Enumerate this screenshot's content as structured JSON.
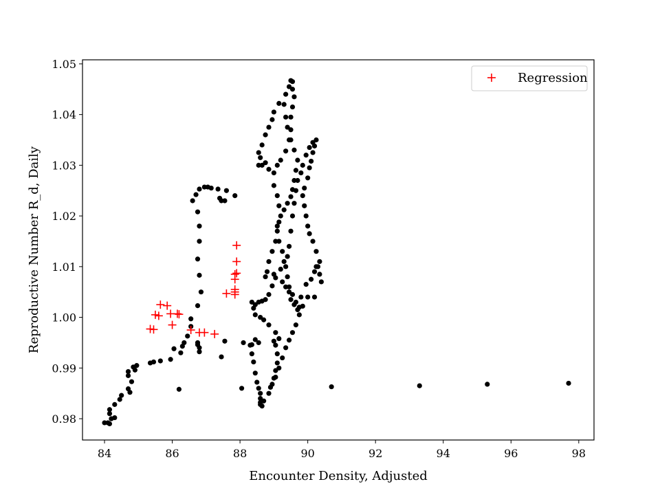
{
  "chart_data": {
    "type": "scatter",
    "title": "",
    "xlabel": "Encounter Density, Adjusted",
    "ylabel": "Reproductive Number R_d, Daily",
    "xlim": [
      83.35,
      98.45
    ],
    "ylim": [
      0.9758,
      1.0508
    ],
    "xticks": [
      84,
      86,
      88,
      90,
      92,
      94,
      96,
      98
    ],
    "xtick_labels": [
      "84",
      "86",
      "88",
      "90",
      "92",
      "94",
      "96",
      "98"
    ],
    "yticks": [
      0.98,
      0.99,
      1.0,
      1.01,
      1.02,
      1.03,
      1.04,
      1.05
    ],
    "ytick_labels": [
      "0.98",
      "0.99",
      "1.00",
      "1.01",
      "1.02",
      "1.03",
      "1.04",
      "1.05"
    ],
    "grid": false,
    "legend_position": "upper right",
    "series": [
      {
        "marker": "dot",
        "color": "#000000",
        "points": [
          [
            84.0,
            0.9792
          ],
          [
            84.1,
            0.9792
          ],
          [
            84.15,
            0.979
          ],
          [
            84.2,
            0.98
          ],
          [
            84.15,
            0.981
          ],
          [
            84.15,
            0.9818
          ],
          [
            84.3,
            0.9802
          ],
          [
            84.3,
            0.9828
          ],
          [
            84.45,
            0.9838
          ],
          [
            84.5,
            0.9846
          ],
          [
            84.7,
            0.9859
          ],
          [
            84.75,
            0.9852
          ],
          [
            84.7,
            0.9885
          ],
          [
            84.7,
            0.9893
          ],
          [
            84.8,
            0.9873
          ],
          [
            84.85,
            0.9902
          ],
          [
            84.95,
            0.9905
          ],
          [
            84.9,
            0.9896
          ],
          [
            85.35,
            0.991
          ],
          [
            85.45,
            0.9912
          ],
          [
            85.65,
            0.9914
          ],
          [
            85.95,
            0.9917
          ],
          [
            86.05,
            0.9938
          ],
          [
            86.25,
            0.993
          ],
          [
            86.3,
            0.9943
          ],
          [
            86.35,
            0.995
          ],
          [
            86.45,
            0.9963
          ],
          [
            86.55,
            0.9982
          ],
          [
            86.55,
            0.9997
          ],
          [
            86.75,
            0.9946
          ],
          [
            86.8,
            0.994
          ],
          [
            86.75,
            0.995
          ],
          [
            86.8,
            0.9932
          ],
          [
            86.75,
            1.0023
          ],
          [
            86.85,
            1.005
          ],
          [
            86.8,
            1.0083
          ],
          [
            86.75,
            1.0115
          ],
          [
            86.8,
            1.015
          ],
          [
            86.8,
            1.018
          ],
          [
            86.75,
            1.0208
          ],
          [
            86.6,
            1.023
          ],
          [
            86.7,
            1.0242
          ],
          [
            86.8,
            1.0253
          ],
          [
            86.95,
            1.0257
          ],
          [
            87.05,
            1.0257
          ],
          [
            87.15,
            1.0255
          ],
          [
            87.35,
            1.0253
          ],
          [
            87.4,
            1.0235
          ],
          [
            87.45,
            1.023
          ],
          [
            87.55,
            1.023
          ],
          [
            87.6,
            1.025
          ],
          [
            87.85,
            1.024
          ],
          [
            87.55,
            0.9953
          ],
          [
            87.45,
            0.9922
          ],
          [
            86.2,
            0.9858
          ],
          [
            88.05,
            0.986
          ],
          [
            88.1,
            0.995
          ],
          [
            88.3,
            0.9945
          ],
          [
            88.35,
            0.9946
          ],
          [
            88.45,
            0.9956
          ],
          [
            88.55,
            0.995
          ],
          [
            88.35,
            0.9928
          ],
          [
            88.4,
            0.9912
          ],
          [
            88.45,
            0.989
          ],
          [
            88.5,
            0.9872
          ],
          [
            88.55,
            0.986
          ],
          [
            88.6,
            0.984
          ],
          [
            88.6,
            0.9832
          ],
          [
            88.6,
            0.9828
          ],
          [
            88.65,
            0.9825
          ],
          [
            88.7,
            0.9835
          ],
          [
            88.6,
            0.985
          ],
          [
            88.85,
            0.985
          ],
          [
            88.9,
            0.9862
          ],
          [
            89.0,
            0.988
          ],
          [
            89.05,
            0.9895
          ],
          [
            89.1,
            0.991
          ],
          [
            89.1,
            0.9928
          ],
          [
            89.05,
            0.9945
          ],
          [
            89.0,
            0.9953
          ],
          [
            89.15,
            0.9958
          ],
          [
            89.05,
            0.997
          ],
          [
            88.85,
            0.9985
          ],
          [
            88.7,
            0.9995
          ],
          [
            88.6,
            1.0
          ],
          [
            88.45,
            1.0005
          ],
          [
            88.4,
            1.0018
          ],
          [
            88.35,
            1.003
          ],
          [
            88.45,
            1.0025
          ],
          [
            88.55,
            1.003
          ],
          [
            88.65,
            1.0032
          ],
          [
            88.75,
            1.0035
          ],
          [
            88.85,
            1.0045
          ],
          [
            88.95,
            1.0062
          ],
          [
            89.05,
            1.0078
          ],
          [
            89.2,
            1.0095
          ],
          [
            89.3,
            1.011
          ],
          [
            89.25,
            1.013
          ],
          [
            89.15,
            1.015
          ],
          [
            89.1,
            1.017
          ],
          [
            89.15,
            1.0188
          ],
          [
            89.2,
            1.02
          ],
          [
            89.3,
            1.0212
          ],
          [
            89.4,
            1.0225
          ],
          [
            89.5,
            1.0238
          ],
          [
            89.55,
            1.0252
          ],
          [
            89.6,
            1.027
          ],
          [
            89.65,
            1.029
          ],
          [
            89.7,
            1.031
          ],
          [
            89.6,
            1.033
          ],
          [
            89.5,
            1.035
          ],
          [
            89.4,
            1.0375
          ],
          [
            89.35,
            1.0395
          ],
          [
            89.3,
            1.042
          ],
          [
            89.35,
            1.044
          ],
          [
            89.45,
            1.0455
          ],
          [
            89.5,
            1.0467
          ],
          [
            89.55,
            1.0465
          ],
          [
            89.55,
            1.045
          ],
          [
            89.6,
            1.0435
          ],
          [
            89.55,
            1.0415
          ],
          [
            89.5,
            1.0395
          ],
          [
            89.5,
            1.037
          ],
          [
            89.45,
            1.035
          ],
          [
            89.35,
            1.0328
          ],
          [
            89.2,
            1.031
          ],
          [
            89.1,
            1.03
          ],
          [
            89.0,
            1.0285
          ],
          [
            88.85,
            1.0292
          ],
          [
            88.75,
            1.0305
          ],
          [
            88.65,
            1.03
          ],
          [
            88.55,
            1.03
          ],
          [
            88.6,
            1.0315
          ],
          [
            88.55,
            1.0325
          ],
          [
            88.65,
            1.034
          ],
          [
            88.75,
            1.036
          ],
          [
            88.85,
            1.0375
          ],
          [
            88.95,
            1.039
          ],
          [
            89.0,
            1.0405
          ],
          [
            89.15,
            1.0422
          ],
          [
            89.0,
            1.026
          ],
          [
            89.1,
            1.024
          ],
          [
            89.15,
            1.022
          ],
          [
            89.1,
            1.018
          ],
          [
            89.05,
            1.015
          ],
          [
            88.95,
            1.013
          ],
          [
            88.85,
            1.011
          ],
          [
            88.8,
            1.009
          ],
          [
            88.75,
            1.008
          ],
          [
            89.0,
            1.0085
          ],
          [
            89.25,
            1.007
          ],
          [
            89.35,
            1.006
          ],
          [
            89.45,
            1.005
          ],
          [
            89.5,
            1.0035
          ],
          [
            89.6,
            1.0025
          ],
          [
            89.7,
            1.0015
          ],
          [
            89.75,
            1.0005
          ],
          [
            89.65,
            0.9985
          ],
          [
            89.55,
            0.997
          ],
          [
            89.45,
            0.9955
          ],
          [
            89.35,
            0.994
          ],
          [
            89.25,
            0.992
          ],
          [
            89.15,
            0.99
          ],
          [
            89.05,
            0.9882
          ],
          [
            88.95,
            0.9868
          ],
          [
            89.8,
            1.004
          ],
          [
            90.0,
            1.004
          ],
          [
            90.2,
            1.004
          ],
          [
            89.95,
            1.0065
          ],
          [
            90.1,
            1.0075
          ],
          [
            90.2,
            1.009
          ],
          [
            90.3,
            1.01
          ],
          [
            90.35,
            1.0085
          ],
          [
            90.4,
            1.007
          ],
          [
            90.25,
            1.01
          ],
          [
            90.35,
            1.011
          ],
          [
            90.25,
            1.013
          ],
          [
            90.15,
            1.015
          ],
          [
            90.05,
            1.0165
          ],
          [
            90.0,
            1.018
          ],
          [
            89.95,
            1.02
          ],
          [
            89.9,
            1.022
          ],
          [
            89.85,
            1.024
          ],
          [
            89.9,
            1.0255
          ],
          [
            90.0,
            1.0275
          ],
          [
            90.05,
            1.0295
          ],
          [
            90.1,
            1.0308
          ],
          [
            90.15,
            1.0325
          ],
          [
            90.2,
            1.0338
          ],
          [
            90.25,
            1.035
          ],
          [
            90.15,
            1.0345
          ],
          [
            90.05,
            1.0335
          ],
          [
            89.95,
            1.032
          ],
          [
            89.85,
            1.03
          ],
          [
            89.8,
            1.0285
          ],
          [
            89.7,
            1.027
          ],
          [
            89.65,
            1.025
          ],
          [
            89.6,
            1.0225
          ],
          [
            89.55,
            1.02
          ],
          [
            89.5,
            1.017
          ],
          [
            89.45,
            1.014
          ],
          [
            89.4,
            1.012
          ],
          [
            89.35,
            1.01
          ],
          [
            89.4,
            1.008
          ],
          [
            89.45,
            1.006
          ],
          [
            89.55,
            1.0045
          ],
          [
            89.65,
            1.003
          ],
          [
            89.75,
            1.002
          ],
          [
            89.85,
            1.0022
          ],
          [
            90.7,
            0.9863
          ],
          [
            93.3,
            0.9865
          ],
          [
            95.3,
            0.9868
          ],
          [
            97.7,
            0.987
          ]
        ]
      },
      {
        "name": "Regression",
        "marker": "plus",
        "color": "#ff0000",
        "points": [
          [
            85.35,
            0.9977
          ],
          [
            85.45,
            0.9976
          ],
          [
            85.5,
            1.0005
          ],
          [
            85.6,
            1.0003
          ],
          [
            85.65,
            1.0025
          ],
          [
            85.85,
            1.0023
          ],
          [
            85.95,
            1.0007
          ],
          [
            86.0,
            0.9985
          ],
          [
            86.15,
            1.0007
          ],
          [
            86.2,
            1.0006
          ],
          [
            86.55,
            0.9975
          ],
          [
            86.8,
            0.997
          ],
          [
            86.95,
            0.997
          ],
          [
            87.25,
            0.9967
          ],
          [
            87.6,
            1.0047
          ],
          [
            87.85,
            1.005
          ],
          [
            87.85,
            1.0045
          ],
          [
            87.85,
            1.0055
          ],
          [
            87.85,
            1.0075
          ],
          [
            87.85,
            1.0085
          ],
          [
            87.9,
            1.0087
          ],
          [
            87.9,
            1.011
          ],
          [
            87.9,
            1.0142
          ]
        ]
      }
    ]
  }
}
